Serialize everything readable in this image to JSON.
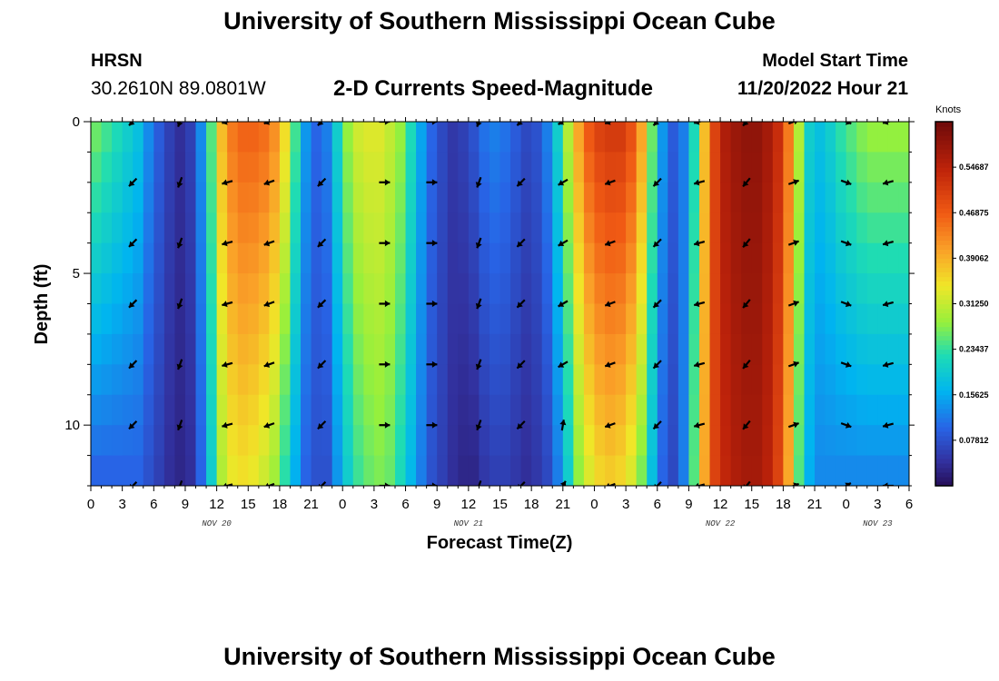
{
  "header": {
    "title": "University of Southern Mississippi Ocean Cube",
    "station": "HRSN",
    "coords": "30.2610N  89.0801W",
    "subtitle": "2-D Currents Speed-Magnitude",
    "start_label": "Model Start Time",
    "start_value": "11/20/2022 Hour 21"
  },
  "footer": {
    "title": "University of Southern Mississippi Ocean Cube"
  },
  "chart_data": {
    "type": "heatmap",
    "title": "2-D Currents Speed-Magnitude",
    "xlabel": "Forecast Time(Z)",
    "ylabel": "Depth (ft)",
    "xlim": [
      0,
      78
    ],
    "ylim": [
      0,
      12
    ],
    "y_inverted": true,
    "x_tick_labels": [
      "0",
      "3",
      "6",
      "9",
      "12",
      "15",
      "18",
      "21",
      "0",
      "3",
      "6",
      "9",
      "12",
      "15",
      "18",
      "21",
      "0",
      "3",
      "6",
      "9",
      "12",
      "15",
      "18",
      "21",
      "0",
      "3",
      "6"
    ],
    "y_tick_labels": [
      "0",
      "5",
      "10"
    ],
    "y_tick_values": [
      0,
      5,
      10
    ],
    "date_labels": [
      {
        "label": "NOV 20",
        "hour": 12
      },
      {
        "label": "NOV 21",
        "hour": 36
      },
      {
        "label": "NOV 22",
        "hour": 60
      },
      {
        "label": "NOV 23",
        "hour": 75
      }
    ],
    "colorbar": {
      "unit": "Knots",
      "min": 0.0,
      "max": 0.625,
      "tick_labels": [
        "0.54687",
        "0.46875",
        "0.39062",
        "0.31250",
        "0.23437",
        "0.15625",
        "0.07812"
      ],
      "tick_values": [
        0.54687,
        0.46875,
        0.39062,
        0.3125,
        0.23437,
        0.15625,
        0.07812
      ]
    },
    "speed_profile": {
      "hours": [
        0,
        1,
        2,
        3,
        4,
        5,
        6,
        7,
        8,
        9,
        10,
        11,
        12,
        13,
        14,
        15,
        16,
        17,
        18,
        19,
        20,
        21,
        22,
        23,
        24,
        25,
        26,
        27,
        28,
        29,
        30,
        31,
        32,
        33,
        34,
        35,
        36,
        37,
        38,
        39,
        40,
        41,
        42,
        43,
        44,
        45,
        46,
        47,
        48,
        49,
        50,
        51,
        52,
        53,
        54,
        55,
        56,
        57,
        58,
        59,
        60,
        61,
        62,
        63,
        64,
        65,
        66,
        67,
        68,
        69,
        70,
        71,
        72,
        73,
        74,
        75,
        76,
        77
      ],
      "surface_knots": [
        0.26,
        0.24,
        0.22,
        0.2,
        0.18,
        0.13,
        0.09,
        0.06,
        0.04,
        0.06,
        0.13,
        0.25,
        0.38,
        0.44,
        0.46,
        0.46,
        0.45,
        0.42,
        0.35,
        0.24,
        0.14,
        0.1,
        0.12,
        0.2,
        0.28,
        0.32,
        0.33,
        0.33,
        0.31,
        0.28,
        0.22,
        0.15,
        0.1,
        0.07,
        0.05,
        0.06,
        0.08,
        0.11,
        0.12,
        0.11,
        0.09,
        0.07,
        0.08,
        0.12,
        0.2,
        0.3,
        0.4,
        0.47,
        0.5,
        0.51,
        0.51,
        0.48,
        0.4,
        0.26,
        0.14,
        0.09,
        0.12,
        0.22,
        0.38,
        0.5,
        0.56,
        0.58,
        0.59,
        0.59,
        0.57,
        0.53,
        0.44,
        0.3,
        0.2,
        0.18,
        0.2,
        0.23,
        0.25,
        0.27,
        0.28,
        0.28,
        0.28,
        0.28
      ],
      "bottom_knots": [
        0.1,
        0.1,
        0.1,
        0.1,
        0.1,
        0.08,
        0.06,
        0.04,
        0.03,
        0.04,
        0.1,
        0.2,
        0.3,
        0.34,
        0.35,
        0.34,
        0.32,
        0.29,
        0.23,
        0.16,
        0.1,
        0.08,
        0.08,
        0.14,
        0.2,
        0.24,
        0.26,
        0.27,
        0.26,
        0.22,
        0.17,
        0.12,
        0.08,
        0.06,
        0.04,
        0.03,
        0.03,
        0.05,
        0.06,
        0.06,
        0.05,
        0.04,
        0.05,
        0.07,
        0.12,
        0.2,
        0.28,
        0.33,
        0.36,
        0.37,
        0.36,
        0.33,
        0.27,
        0.18,
        0.1,
        0.07,
        0.12,
        0.25,
        0.4,
        0.5,
        0.54,
        0.56,
        0.57,
        0.57,
        0.55,
        0.5,
        0.4,
        0.25,
        0.16,
        0.13,
        0.13,
        0.13,
        0.13,
        0.13,
        0.13,
        0.13,
        0.13,
        0.13
      ]
    },
    "vector_hours": [
      4,
      8.5,
      13,
      17,
      22,
      28,
      32.5,
      37,
      41,
      45,
      49.5,
      54,
      58,
      62.5,
      67,
      72,
      76
    ],
    "vector_depths": [
      0,
      2,
      4,
      6,
      8,
      10,
      12
    ],
    "vector_angles_deg": [
      225,
      250,
      195,
      200,
      225,
      0,
      0,
      250,
      225,
      210,
      200,
      225,
      195,
      230,
      20,
      340,
      195
    ],
    "vector_overrides": [
      {
        "hour": 45,
        "depth": 10,
        "angle_deg": 80
      },
      {
        "hour": 45,
        "depth": 12,
        "angle_deg": 60
      },
      {
        "hour": 72,
        "depth": 12,
        "angle_deg": 30
      },
      {
        "hour": 76,
        "depth": 12,
        "angle_deg": 180
      }
    ]
  }
}
